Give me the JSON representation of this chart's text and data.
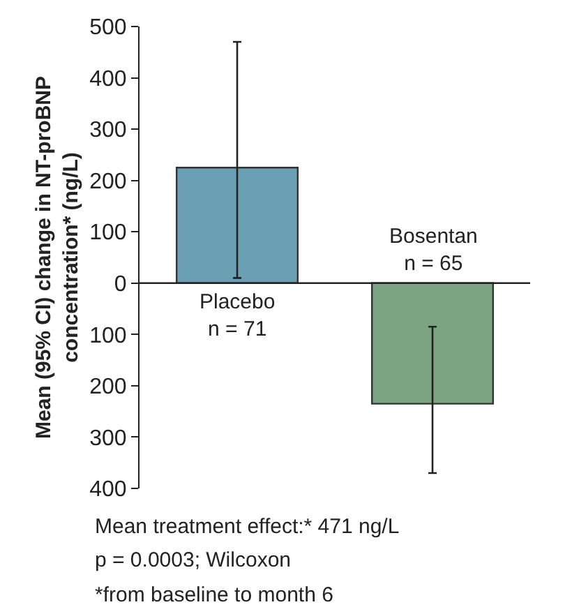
{
  "chart_data": {
    "type": "bar",
    "ylabel": "Mean (95% CI) change in NT-proBNP\nconcentration* (ng/L)",
    "categories": [
      "Placebo\nn = 71",
      "Bosentan\nn = 65"
    ],
    "values": [
      225,
      -235
    ],
    "colors": [
      "#6b9fb4",
      "#7aa482"
    ],
    "errors": [
      [
        10,
        470
      ],
      [
        -370,
        -85
      ]
    ],
    "ylim": [
      -400,
      500
    ],
    "yticks": [
      {
        "value": -400,
        "label": "400"
      },
      {
        "value": -300,
        "label": "300"
      },
      {
        "value": -200,
        "label": "200"
      },
      {
        "value": -100,
        "label": "100"
      },
      0,
      100,
      200,
      300,
      400,
      500
    ],
    "tick_labels": "y",
    "legend": false,
    "ref_lines": [
      {
        "axis": "y",
        "value": 0,
        "color": "#222222"
      }
    ],
    "annotations": [
      "Mean treatment effect:* 471 ng/L",
      "p = 0.0003; Wilcoxon",
      "*from baseline to month 6"
    ]
  }
}
